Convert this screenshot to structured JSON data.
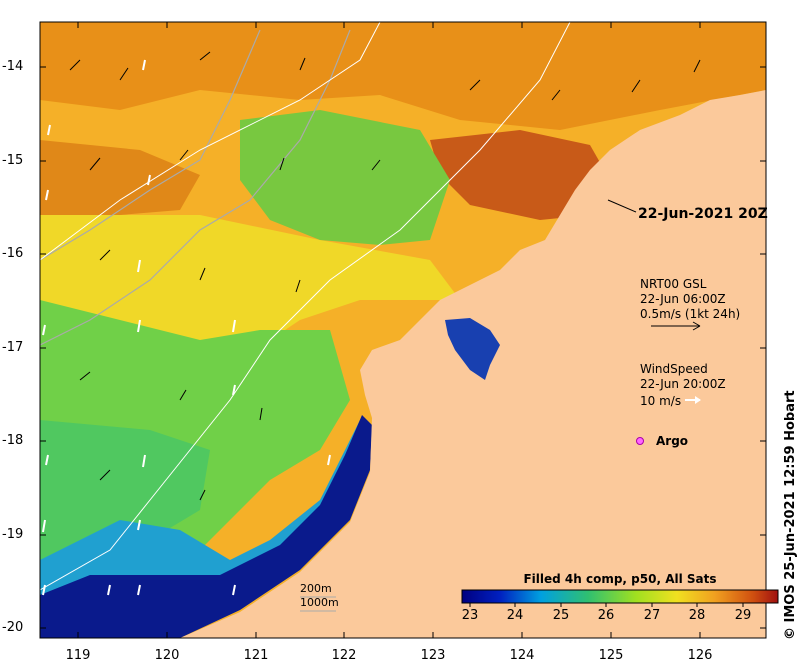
{
  "map": {
    "y_axis_labels": [
      "-14",
      "-15",
      "-16",
      "-17",
      "-18",
      "-19",
      "-20"
    ],
    "x_axis_labels": [
      "119",
      "120",
      "121",
      "122",
      "123",
      "124",
      "125",
      "126"
    ],
    "colors": {
      "ocean_warm": "#f0a020",
      "ocean_hot": "#c8501a",
      "ocean_mid": "#f0d020",
      "ocean_green": "#60d040",
      "ocean_cool": "#0060c0",
      "ocean_cold": "#002080",
      "land": "#fbc99b",
      "contour": "#aaaaaa",
      "track": "#ffffff"
    }
  },
  "timestamp": "22-Jun-2021 20Z",
  "current_legend": {
    "line1": "NRT00 GSL",
    "line2": "22-Jun 06:00Z",
    "line3": "0.5m/s (1kt 24h)"
  },
  "wind_legend": {
    "line1": "WindSpeed",
    "line2": "22-Jun 20:00Z",
    "line3": "10 m/s"
  },
  "argo_label": "Argo",
  "depth_labels": [
    "200m",
    "1000m"
  ],
  "colorbar": {
    "title": "Filled 4h comp, p50, All Sats",
    "ticks": [
      "23",
      "24",
      "25",
      "26",
      "27",
      "28",
      "29"
    ],
    "units_range": [
      23,
      29
    ]
  },
  "credit": "© IMOS 25-Jun-2021 12:59 Hobart"
}
